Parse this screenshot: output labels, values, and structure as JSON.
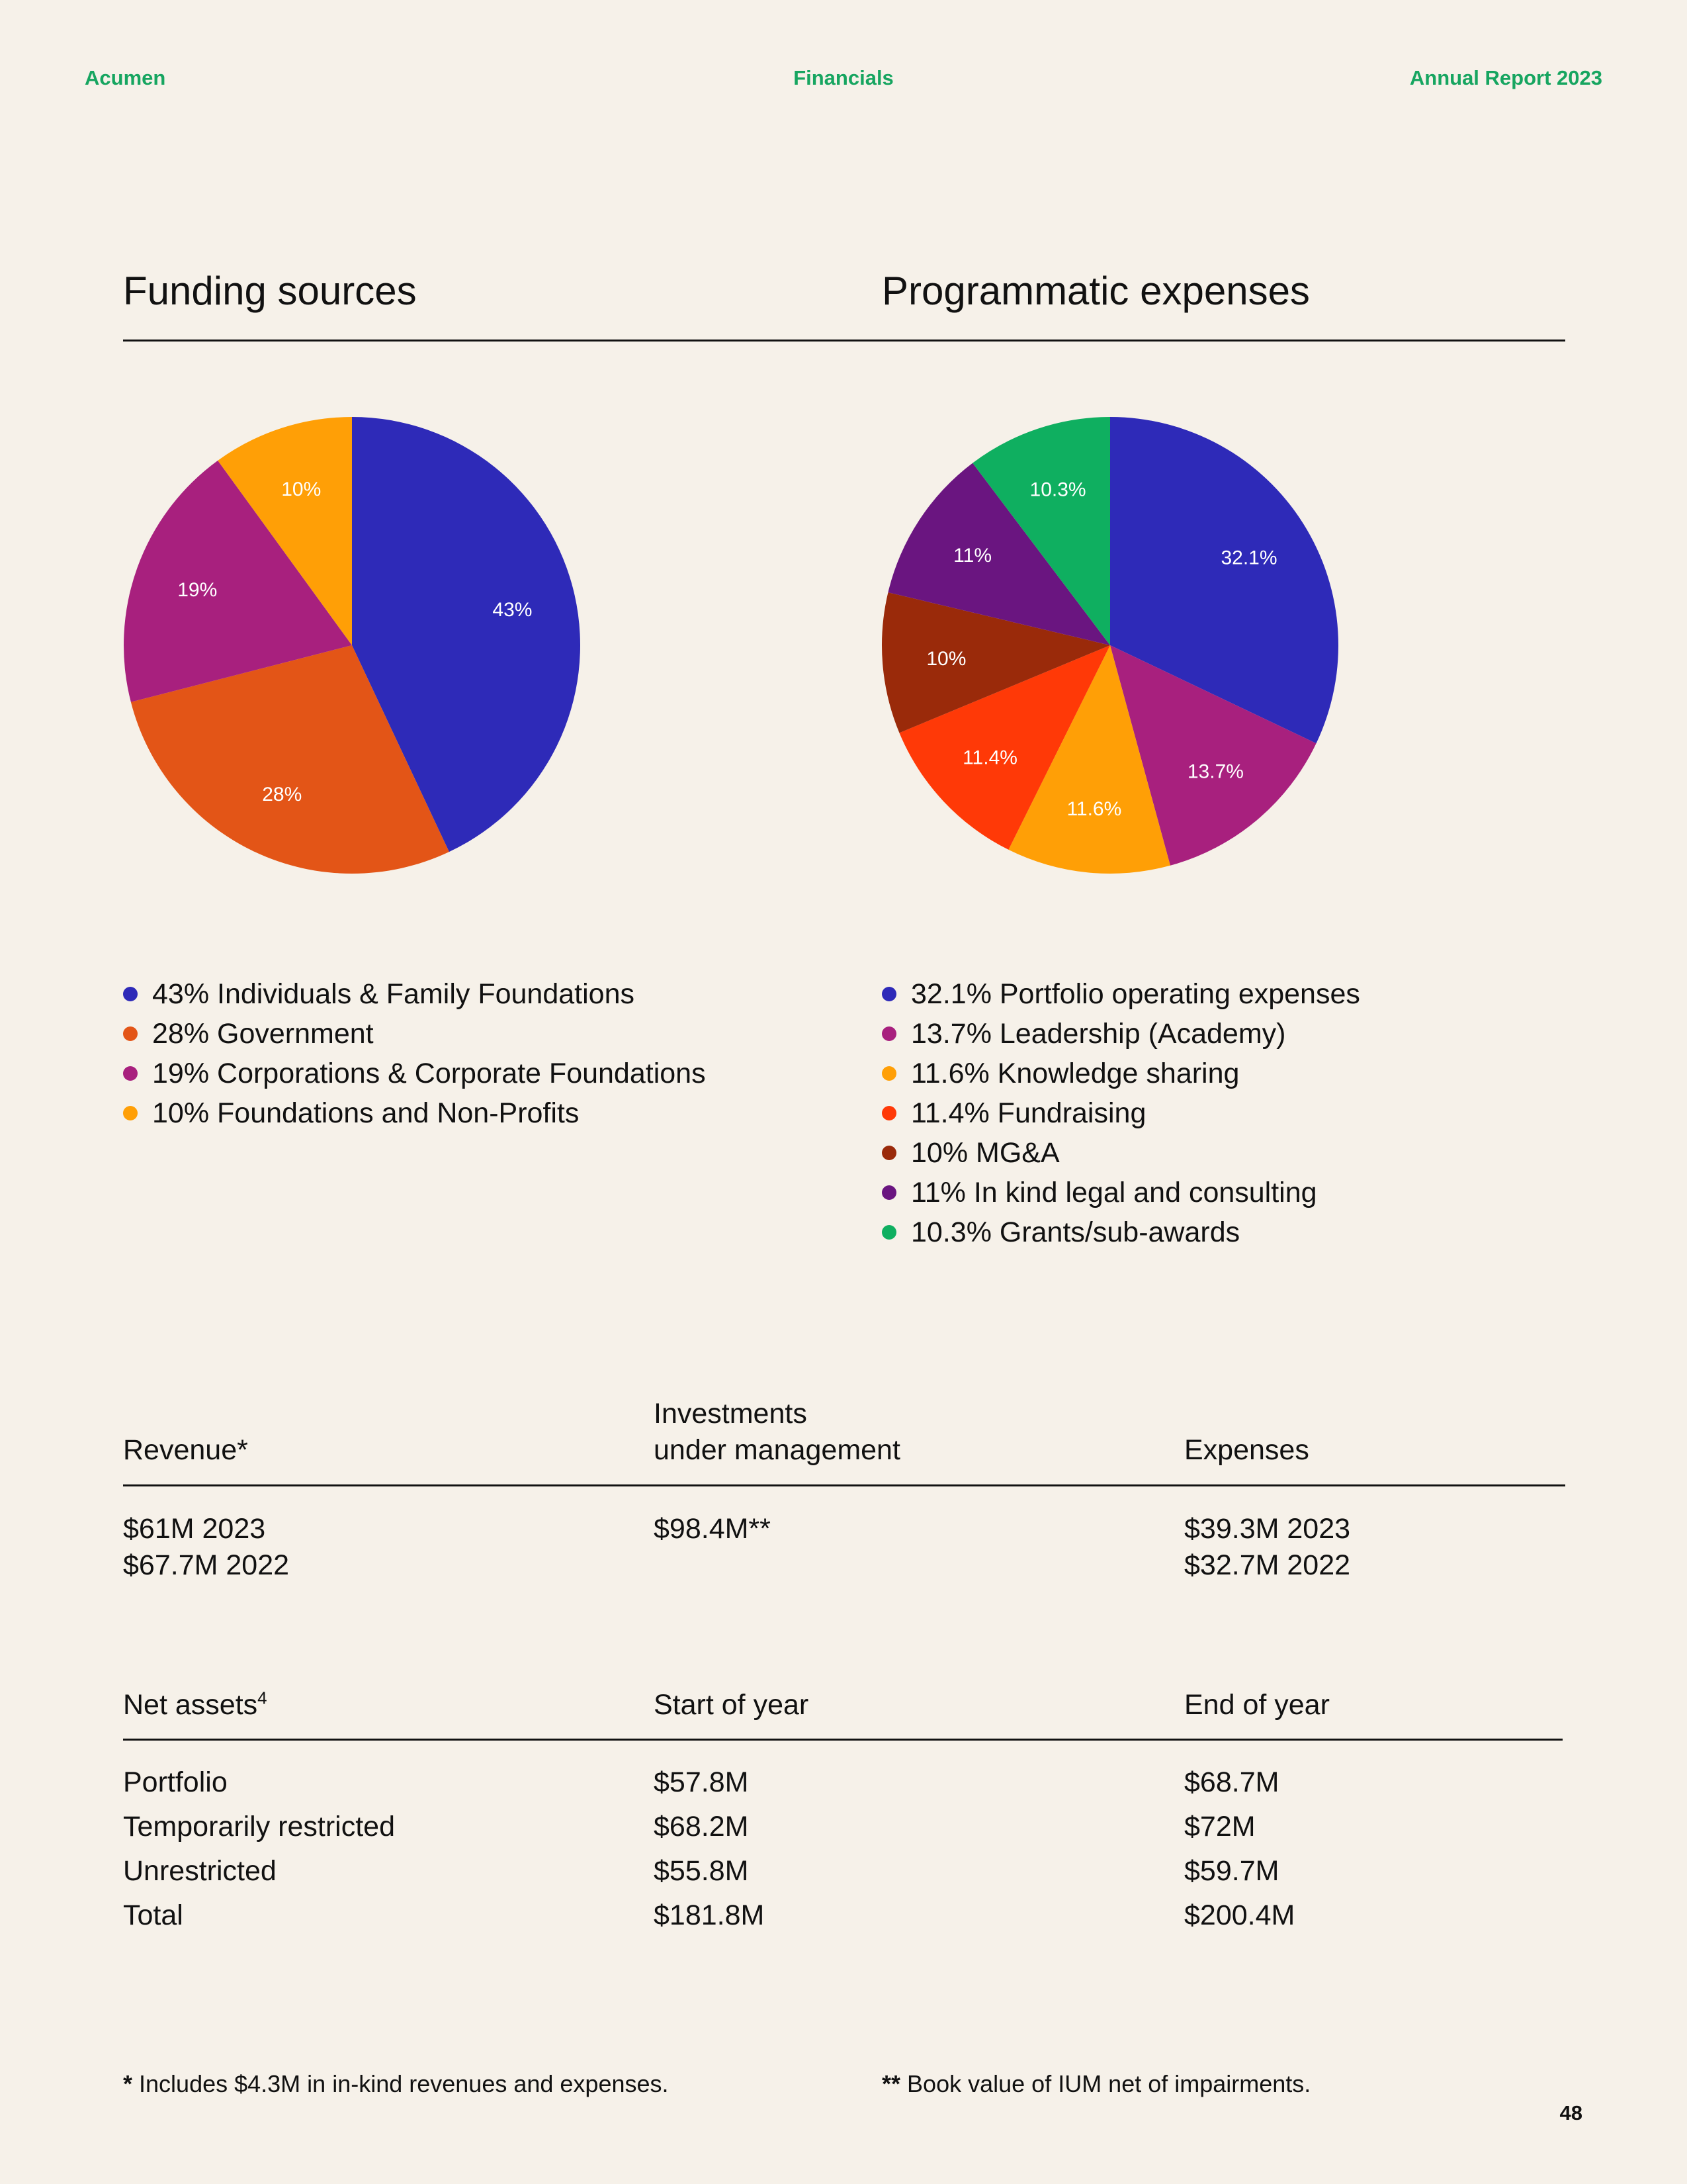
{
  "header": {
    "brand": "Acumen",
    "section": "Financials",
    "report": "Annual Report 2023"
  },
  "funding": {
    "title": "Funding sources",
    "legend": [
      {
        "label": "43% Individuals & Family Foundations",
        "color": "#2e2ab8"
      },
      {
        "label": "28% Government",
        "color": "#e35517"
      },
      {
        "label": "19% Corporations & Corporate Foundations",
        "color": "#a8207e"
      },
      {
        "label": "10% Foundations and Non-Profits",
        "color": "#ff9f06"
      }
    ]
  },
  "programmatic": {
    "title": "Programmatic expenses",
    "legend": [
      {
        "label": "32.1% Portfolio operating expenses",
        "color": "#2e2ab8"
      },
      {
        "label": "13.7% Leadership (Academy)",
        "color": "#a8207e"
      },
      {
        "label": "11.6% Knowledge sharing",
        "color": "#ff9f06"
      },
      {
        "label": "11.4% Fundraising",
        "color": "#ff3907"
      },
      {
        "label": "10% MG&A",
        "color": "#9a2a0a"
      },
      {
        "label": "11% In kind legal and consulting",
        "color": "#6a1580"
      },
      {
        "label": "10.3% Grants/sub-awards",
        "color": "#0faf60"
      }
    ]
  },
  "chart_data": [
    {
      "type": "pie",
      "title": "Funding sources",
      "categories": [
        "Individuals & Family Foundations",
        "Government",
        "Corporations & Corporate Foundations",
        "Foundations and Non-Profits"
      ],
      "values": [
        43,
        28,
        19,
        10
      ],
      "labels": [
        "43%",
        "28%",
        "19%",
        "10%"
      ],
      "colors": [
        "#2e2ab8",
        "#e35517",
        "#a8207e",
        "#ff9f06"
      ]
    },
    {
      "type": "pie",
      "title": "Programmatic expenses",
      "categories": [
        "Portfolio operating expenses",
        "Leadership (Academy)",
        "Knowledge sharing",
        "Fundraising",
        "MG&A",
        "In kind legal and consulting",
        "Grants/sub-awards"
      ],
      "values": [
        32.1,
        13.7,
        11.6,
        11.4,
        10,
        11,
        10.3
      ],
      "labels": [
        "32.1%",
        "13.7%",
        "11.6%",
        "11.4%",
        "10%",
        "11%",
        "10.3%"
      ],
      "colors": [
        "#2e2ab8",
        "#a8207e",
        "#ff9f06",
        "#ff3907",
        "#9a2a0a",
        "#6a1580",
        "#0faf60"
      ]
    }
  ],
  "summary": {
    "revenue": {
      "label": "Revenue*",
      "lines": [
        "$61M 2023",
        "$67.7M 2022"
      ]
    },
    "investments": {
      "label_line1": "Investments",
      "label_line2": "under management",
      "value": "$98.4M**"
    },
    "expenses": {
      "label": "Expenses",
      "lines": [
        "$39.3M 2023",
        "$32.7M 2022"
      ]
    }
  },
  "net_assets": {
    "label": "Net assets",
    "footnote_mark": "4",
    "start_label": "Start of year",
    "end_label": "End of year",
    "rows": [
      {
        "name": "Portfolio",
        "start": "$57.8M",
        "end": "$68.7M"
      },
      {
        "name": "Temporarily restricted",
        "start": "$68.2M",
        "end": "$72M"
      },
      {
        "name": "Unrestricted",
        "start": "$55.8M",
        "end": "$59.7M"
      },
      {
        "name": "Total",
        "start": "$181.8M",
        "end": "$200.4M"
      }
    ]
  },
  "footnotes": {
    "note1_mark": "*",
    "note1_text": "Includes $4.3M in in-kind revenues and expenses.",
    "note2_mark": "**",
    "note2_text": "Book value of IUM net of impairments."
  },
  "page_number": "48"
}
